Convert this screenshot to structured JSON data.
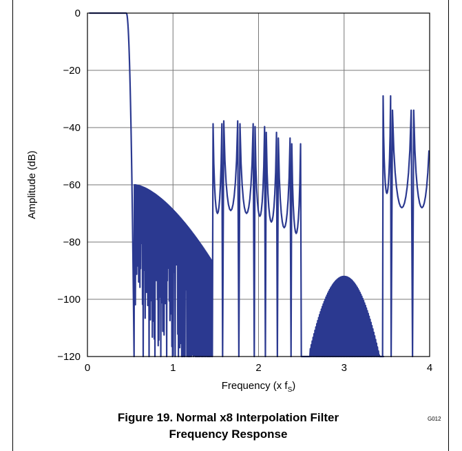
{
  "chart_data": {
    "type": "line",
    "title": "",
    "xlabel": "Frequency (x f",
    "xlabel_sub": "S",
    "xlabel_close": ")",
    "ylabel": "Amplitude (dB)",
    "xlim": [
      0,
      4
    ],
    "ylim": [
      -120,
      0
    ],
    "x_ticks": [
      0,
      1,
      2,
      3,
      4
    ],
    "x_tick_labels": [
      "0",
      "1",
      "2",
      "3",
      "4"
    ],
    "y_ticks": [
      0,
      -20,
      -40,
      -60,
      -80,
      -100,
      -120
    ],
    "y_tick_labels": [
      "0",
      "−20",
      "−40",
      "−60",
      "−80",
      "−100",
      "−120"
    ],
    "grid": true,
    "line_color": "#2b3990",
    "series": [
      {
        "passband_end": 0.454,
        "passband_level": 0,
        "transition_end": 0.545,
        "stopband_1": {
          "x_start": 0.545,
          "x_end": 1.46,
          "peak_start": -60,
          "peak_at_end": -87,
          "null_depth": -120
        },
        "stopband_2_lobes": [
          {
            "x_start": 1.46,
            "x_end": 1.58,
            "peak": -70
          },
          {
            "x_start": 1.58,
            "x_end": 1.77,
            "peak": -69
          },
          {
            "x_start": 1.77,
            "x_end": 1.95,
            "peak": -70
          },
          {
            "x_start": 1.95,
            "x_end": 2.08,
            "peak": -71
          },
          {
            "x_start": 2.08,
            "x_end": 2.22,
            "peak": -73
          },
          {
            "x_start": 2.22,
            "x_end": 2.38,
            "peak": -75
          },
          {
            "x_start": 2.38,
            "x_end": 2.5,
            "peak": -77
          }
        ],
        "stopband_3": {
          "x_start": 2.6,
          "x_end": 3.46,
          "center": 3.0,
          "peak": -92
        },
        "stopband_4_lobes": [
          {
            "x_start": 3.45,
            "x_end": 3.55,
            "peak": -63
          },
          {
            "x_start": 3.55,
            "x_end": 3.8,
            "peak": -68
          },
          {
            "x_start": 3.8,
            "x_end": 4.02,
            "peak": -68
          }
        ]
      }
    ]
  },
  "figure_code": "G012",
  "caption": {
    "line1": "Figure 19. Normal x8 Interpolation Filter",
    "line2": "Frequency Response"
  }
}
